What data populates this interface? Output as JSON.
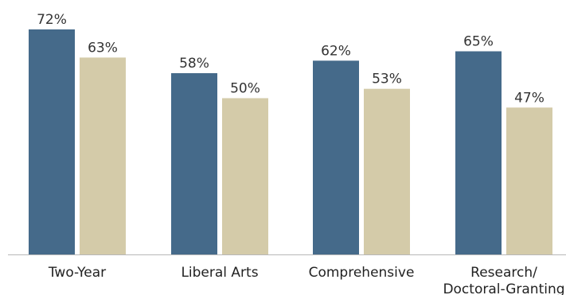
{
  "chart_data": {
    "type": "bar",
    "categories": [
      "Two-Year",
      "Liberal Arts",
      "Comprehensive",
      "Research/\nDoctoral-Granting"
    ],
    "series": [
      {
        "values": [
          72,
          58,
          62,
          65
        ],
        "color": "#456a8a"
      },
      {
        "values": [
          63,
          50,
          53,
          47
        ],
        "color": "#d4cba9"
      }
    ],
    "data_labels": [
      [
        "72%",
        "58%",
        "62%",
        "65%"
      ],
      [
        "63%",
        "50%",
        "53%",
        "47%"
      ]
    ],
    "ylim": [
      0,
      80
    ],
    "grid": false,
    "legend": "none",
    "title": "",
    "xlabel": "",
    "ylabel": ""
  }
}
